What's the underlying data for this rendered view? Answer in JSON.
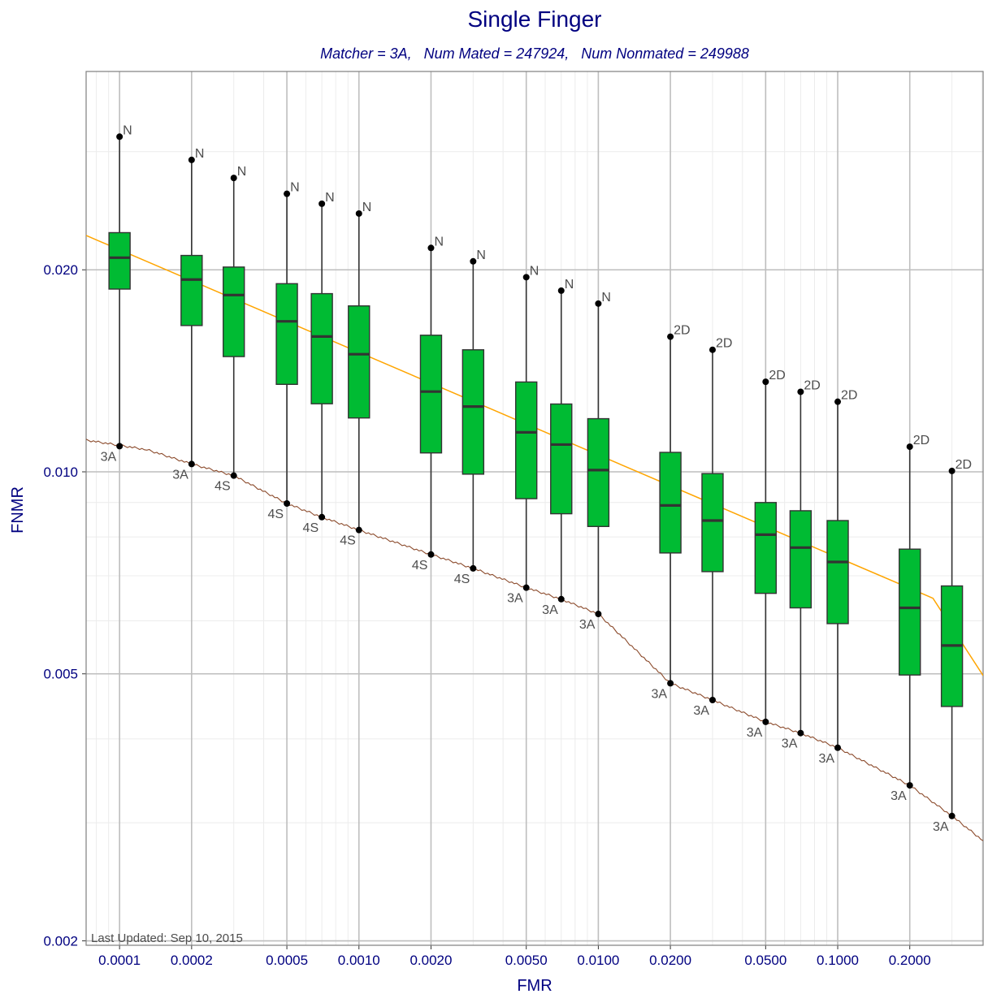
{
  "chart_data": {
    "type": "box",
    "title": "Single Finger",
    "subtitle": "Matcher = 3A,   Num Mated = 247924,   Num Nonmated = 249988",
    "xlabel": "FMR",
    "ylabel": "FNMR",
    "x_scale": "log",
    "y_scale": "log",
    "xlim": [
      7.25e-05,
      0.405
    ],
    "ylim": [
      0.00197,
      0.0395
    ],
    "x_ticks": [
      0.0001,
      0.0002,
      0.0005,
      0.001,
      0.002,
      0.005,
      0.01,
      0.02,
      0.05,
      0.1,
      0.2
    ],
    "x_tick_labels": [
      "0.0001",
      "0.0002",
      "0.0005",
      "0.0010",
      "0.0020",
      "0.0050",
      "0.0100",
      "0.0200",
      "0.0500",
      "0.1000",
      "0.2000"
    ],
    "y_ticks": [
      0.002,
      0.005,
      0.01,
      0.02
    ],
    "y_tick_labels": [
      "0.002",
      "0.005",
      "0.010",
      "0.020"
    ],
    "grid": true,
    "colors": {
      "box_fill": "#00bb33",
      "box_line": "#333333",
      "reference_line": "#ffa500",
      "best_line": "#8b4a2b",
      "text": "#000080",
      "annotation": "#4d4d4d",
      "grid_major": "#bebebe",
      "grid_minor": "#ececec"
    },
    "boxes": [
      {
        "fmr": 0.0001,
        "min": 0.01092,
        "q1": 0.01872,
        "median": 0.02085,
        "q3": 0.02272,
        "max": 0.03158,
        "max_label": "N",
        "min_label": "3A"
      },
      {
        "fmr": 0.0002,
        "min": 0.01027,
        "q1": 0.01652,
        "median": 0.01934,
        "q3": 0.02101,
        "max": 0.02916,
        "max_label": "N",
        "min_label": "3A"
      },
      {
        "fmr": 0.0003,
        "min": 0.00987,
        "q1": 0.01485,
        "median": 0.01834,
        "q3": 0.02019,
        "max": 0.02741,
        "max_label": "N",
        "min_label": "4S"
      },
      {
        "fmr": 0.0005,
        "min": 0.00897,
        "q1": 0.0135,
        "median": 0.01676,
        "q3": 0.01907,
        "max": 0.02596,
        "max_label": "N",
        "min_label": "4S"
      },
      {
        "fmr": 0.0007,
        "min": 0.00856,
        "q1": 0.01263,
        "median": 0.01591,
        "q3": 0.01843,
        "max": 0.02509,
        "max_label": "N",
        "min_label": "4S"
      },
      {
        "fmr": 0.001,
        "min": 0.00819,
        "q1": 0.01203,
        "median": 0.01497,
        "q3": 0.01767,
        "max": 0.02426,
        "max_label": "N",
        "min_label": "4S"
      },
      {
        "fmr": 0.002,
        "min": 0.00753,
        "q1": 0.01067,
        "median": 0.01317,
        "q3": 0.01598,
        "max": 0.02156,
        "max_label": "N",
        "min_label": "4S"
      },
      {
        "fmr": 0.003,
        "min": 0.00718,
        "q1": 0.00992,
        "median": 0.01251,
        "q3": 0.0152,
        "max": 0.02059,
        "max_label": "N",
        "min_label": "4S"
      },
      {
        "fmr": 0.005,
        "min": 0.00672,
        "q1": 0.00912,
        "median": 0.01145,
        "q3": 0.01361,
        "max": 0.0195,
        "max_label": "N",
        "min_label": "3A"
      },
      {
        "fmr": 0.007,
        "min": 0.00646,
        "q1": 0.00866,
        "median": 0.01098,
        "q3": 0.01262,
        "max": 0.01862,
        "max_label": "N",
        "min_label": "3A"
      },
      {
        "fmr": 0.01,
        "min": 0.00614,
        "q1": 0.00829,
        "median": 0.01006,
        "q3": 0.012,
        "max": 0.01781,
        "max_label": "N",
        "min_label": "3A"
      },
      {
        "fmr": 0.02,
        "min": 0.00484,
        "q1": 0.00757,
        "median": 0.00891,
        "q3": 0.01069,
        "max": 0.0159,
        "max_label": "2D",
        "min_label": "3A"
      },
      {
        "fmr": 0.03,
        "min": 0.00457,
        "q1": 0.0071,
        "median": 0.00846,
        "q3": 0.00994,
        "max": 0.0152,
        "max_label": "2D",
        "min_label": "3A"
      },
      {
        "fmr": 0.05,
        "min": 0.00424,
        "q1": 0.00659,
        "median": 0.00806,
        "q3": 0.009,
        "max": 0.01362,
        "max_label": "2D",
        "min_label": "3A"
      },
      {
        "fmr": 0.07,
        "min": 0.00408,
        "q1": 0.00627,
        "median": 0.00771,
        "q3": 0.00875,
        "max": 0.01316,
        "max_label": "2D",
        "min_label": "3A"
      },
      {
        "fmr": 0.1,
        "min": 0.00388,
        "q1": 0.00594,
        "median": 0.00734,
        "q3": 0.00846,
        "max": 0.01272,
        "max_label": "2D",
        "min_label": "3A"
      },
      {
        "fmr": 0.2,
        "min": 0.00341,
        "q1": 0.00498,
        "median": 0.00627,
        "q3": 0.00767,
        "max": 0.0109,
        "max_label": "2D",
        "min_label": "3A"
      },
      {
        "fmr": 0.3,
        "min": 0.00307,
        "q1": 0.00447,
        "median": 0.00551,
        "q3": 0.00676,
        "max": 0.01003,
        "max_label": "2D",
        "min_label": "3A"
      }
    ],
    "reference_line": {
      "x": [
        7.25e-05,
        0.25,
        0.405
      ],
      "y": [
        0.0225,
        0.00648,
        0.00497
      ]
    },
    "best_line": {
      "x": [
        7.25e-05,
        0.00013,
        0.0002,
        0.0003,
        0.0005,
        0.0007,
        0.001,
        0.002,
        0.003,
        0.005,
        0.007,
        0.01,
        0.02,
        0.03,
        0.05,
        0.07,
        0.1,
        0.2,
        0.3,
        0.405
      ],
      "y": [
        0.01115,
        0.01079,
        0.01027,
        0.00987,
        0.00897,
        0.00856,
        0.00819,
        0.00753,
        0.00718,
        0.00672,
        0.00646,
        0.00614,
        0.00484,
        0.00457,
        0.00424,
        0.00408,
        0.00388,
        0.00341,
        0.00307,
        0.00282
      ]
    },
    "footnote": "Last Updated: Sep 10, 2015"
  }
}
